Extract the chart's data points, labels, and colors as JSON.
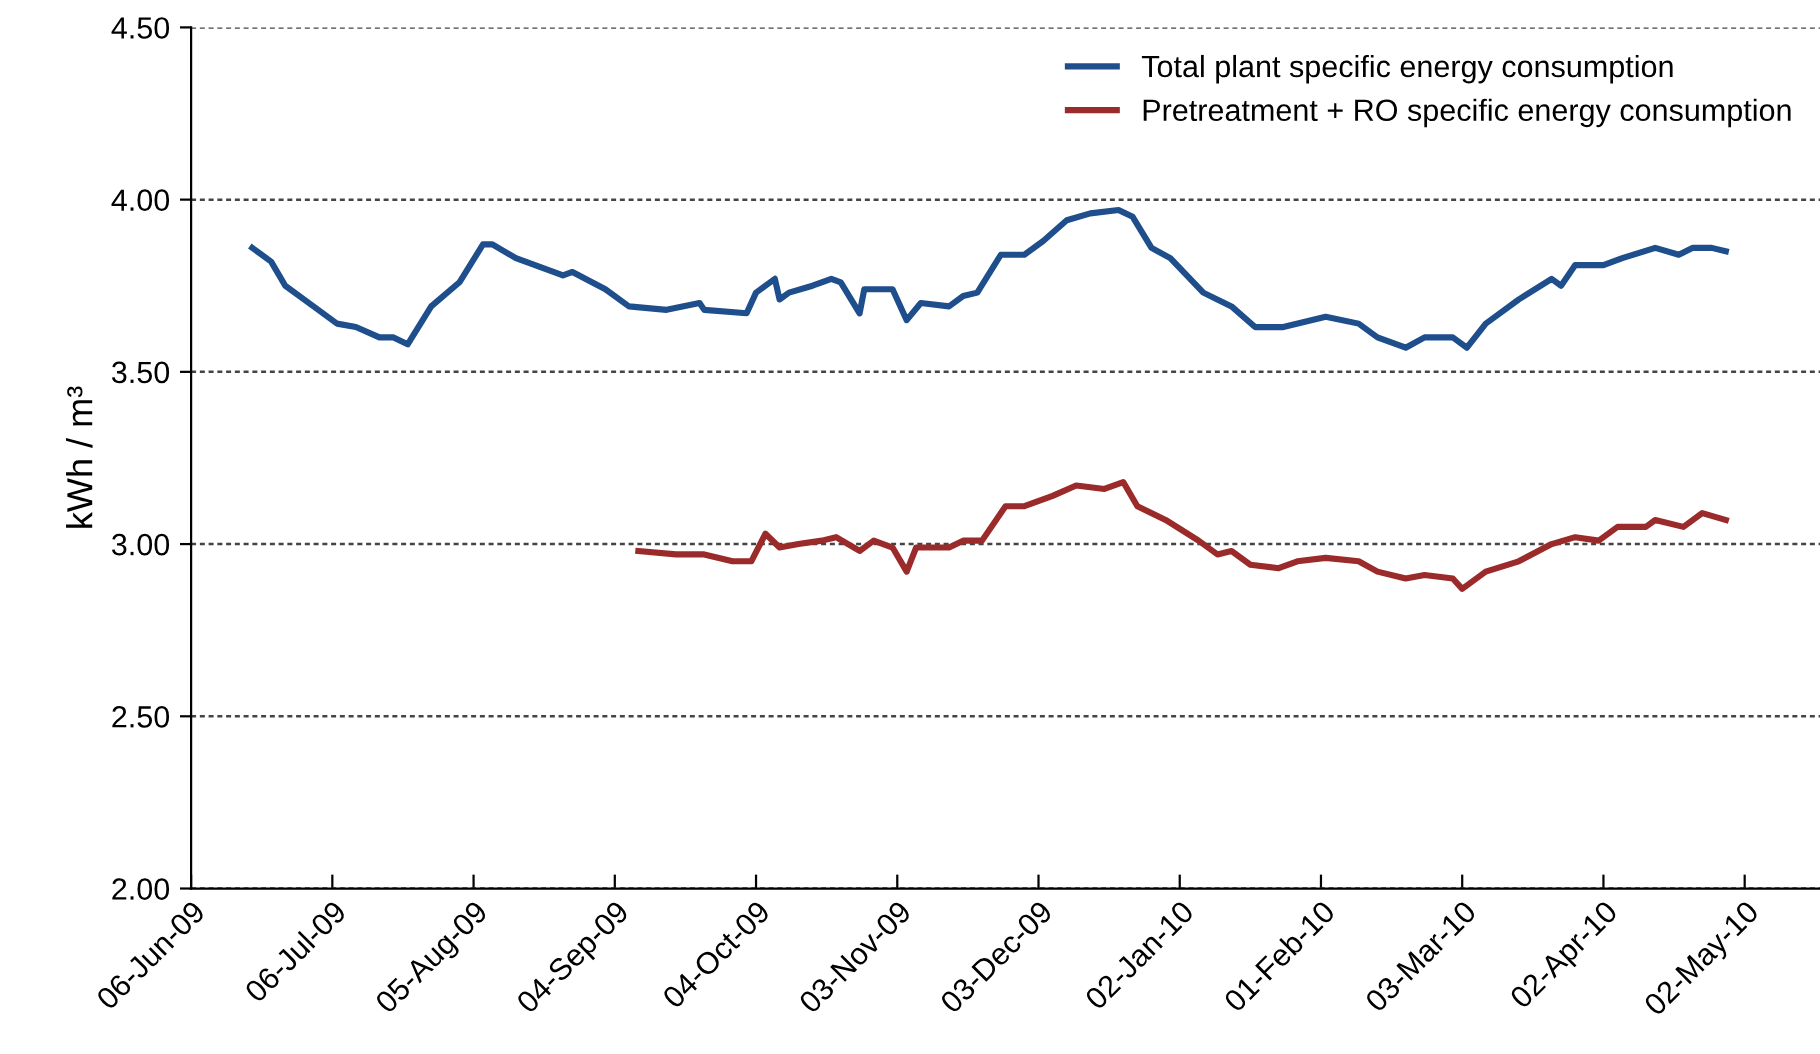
{
  "chart_data": {
    "type": "line",
    "ylabel": "kWh / m³",
    "xlim": [
      "2009-06-06",
      "2010-05-18"
    ],
    "xticks": [
      {
        "value": "2009-06-06",
        "label": "06-Jun-09"
      },
      {
        "value": "2009-07-06",
        "label": "06-Jul-09"
      },
      {
        "value": "2009-08-05",
        "label": "05-Aug-09"
      },
      {
        "value": "2009-09-04",
        "label": "04-Sep-09"
      },
      {
        "value": "2009-10-04",
        "label": "04-Oct-09"
      },
      {
        "value": "2009-11-03",
        "label": "03-Nov-09"
      },
      {
        "value": "2009-12-03",
        "label": "03-Dec-09"
      },
      {
        "value": "2010-01-02",
        "label": "02-Jan-10"
      },
      {
        "value": "2010-02-01",
        "label": "01-Feb-10"
      },
      {
        "value": "2010-03-03",
        "label": "03-Mar-10"
      },
      {
        "value": "2010-04-02",
        "label": "02-Apr-10"
      },
      {
        "value": "2010-05-02",
        "label": "02-May-10"
      }
    ],
    "ylim": [
      2.0,
      4.5
    ],
    "yticks": [
      {
        "value": 2.0,
        "label": "2.00"
      },
      {
        "value": 2.5,
        "label": "2.50"
      },
      {
        "value": 3.0,
        "label": "3.00"
      },
      {
        "value": 3.5,
        "label": "3.50"
      },
      {
        "value": 4.0,
        "label": "4.00"
      },
      {
        "value": 4.5,
        "label": "4.50"
      }
    ],
    "grid": "y",
    "legend": "top right",
    "marker": "none",
    "line_style": "solid",
    "series": [
      {
        "name": "Total plant specific energy consumption",
        "color": "#1f4e8c",
        "x": [
          "2009-06-19",
          "2009-06-23",
          "2009-06-26",
          "2009-07-02",
          "2009-07-07",
          "2009-07-11",
          "2009-07-16",
          "2009-07-19",
          "2009-07-22",
          "2009-07-27",
          "2009-08-02",
          "2009-08-07",
          "2009-08-09",
          "2009-08-14",
          "2009-08-24",
          "2009-08-26",
          "2009-09-02",
          "2009-09-07",
          "2009-09-15",
          "2009-09-22",
          "2009-09-23",
          "2009-10-02",
          "2009-10-04",
          "2009-10-08",
          "2009-10-09",
          "2009-10-11",
          "2009-10-16",
          "2009-10-20",
          "2009-10-22",
          "2009-10-26",
          "2009-10-27",
          "2009-11-02",
          "2009-11-05",
          "2009-11-08",
          "2009-11-14",
          "2009-11-17",
          "2009-11-20",
          "2009-11-25",
          "2009-11-30",
          "2009-12-04",
          "2009-12-09",
          "2009-12-14",
          "2009-12-20",
          "2009-12-23",
          "2009-12-27",
          "2009-12-31",
          "2010-01-07",
          "2010-01-13",
          "2010-01-18",
          "2010-01-24",
          "2010-02-02",
          "2010-02-09",
          "2010-02-13",
          "2010-02-19",
          "2010-02-23",
          "2010-03-01",
          "2010-03-04",
          "2010-03-08",
          "2010-03-15",
          "2010-03-22",
          "2010-03-24",
          "2010-03-27",
          "2010-04-02",
          "2010-04-06",
          "2010-04-13",
          "2010-04-18",
          "2010-04-21",
          "2010-04-25",
          "2010-04-28"
        ],
        "values": [
          3.86,
          3.82,
          3.75,
          3.69,
          3.64,
          3.63,
          3.6,
          3.6,
          3.58,
          3.69,
          3.76,
          3.87,
          3.87,
          3.83,
          3.78,
          3.79,
          3.74,
          3.69,
          3.68,
          3.7,
          3.68,
          3.67,
          3.73,
          3.77,
          3.71,
          3.73,
          3.75,
          3.77,
          3.76,
          3.67,
          3.74,
          3.74,
          3.65,
          3.7,
          3.69,
          3.72,
          3.73,
          3.84,
          3.84,
          3.88,
          3.94,
          3.96,
          3.97,
          3.95,
          3.86,
          3.83,
          3.73,
          3.69,
          3.63,
          3.63,
          3.66,
          3.64,
          3.6,
          3.57,
          3.6,
          3.6,
          3.57,
          3.64,
          3.71,
          3.77,
          3.75,
          3.81,
          3.81,
          3.83,
          3.86,
          3.84,
          3.86,
          3.86,
          3.85
        ]
      },
      {
        "name": "Pretreatment + RO specific energy consumption",
        "color": "#9b2a2a",
        "x": [
          "2009-09-09",
          "2009-09-17",
          "2009-09-23",
          "2009-09-29",
          "2009-10-03",
          "2009-10-06",
          "2009-10-09",
          "2009-10-13",
          "2009-10-18",
          "2009-10-21",
          "2009-10-26",
          "2009-10-29",
          "2009-11-02",
          "2009-11-05",
          "2009-11-07",
          "2009-11-14",
          "2009-11-17",
          "2009-11-21",
          "2009-11-26",
          "2009-11-30",
          "2009-12-06",
          "2009-12-11",
          "2009-12-17",
          "2009-12-21",
          "2009-12-24",
          "2009-12-30",
          "2010-01-06",
          "2010-01-10",
          "2010-01-13",
          "2010-01-17",
          "2010-01-23",
          "2010-01-27",
          "2010-02-02",
          "2010-02-09",
          "2010-02-13",
          "2010-02-19",
          "2010-02-23",
          "2010-03-01",
          "2010-03-03",
          "2010-03-08",
          "2010-03-15",
          "2010-03-22",
          "2010-03-27",
          "2010-04-01",
          "2010-04-05",
          "2010-04-11",
          "2010-04-13",
          "2010-04-19",
          "2010-04-23",
          "2010-04-28"
        ],
        "values": [
          2.98,
          2.97,
          2.97,
          2.95,
          2.95,
          3.03,
          2.99,
          3.0,
          3.01,
          3.02,
          2.98,
          3.01,
          2.99,
          2.92,
          2.99,
          2.99,
          3.01,
          3.01,
          3.11,
          3.11,
          3.14,
          3.17,
          3.16,
          3.18,
          3.11,
          3.07,
          3.01,
          2.97,
          2.98,
          2.94,
          2.93,
          2.95,
          2.96,
          2.95,
          2.92,
          2.9,
          2.91,
          2.9,
          2.87,
          2.92,
          2.95,
          3.0,
          3.02,
          3.01,
          3.05,
          3.05,
          3.07,
          3.05,
          3.09,
          3.07
        ]
      }
    ]
  }
}
